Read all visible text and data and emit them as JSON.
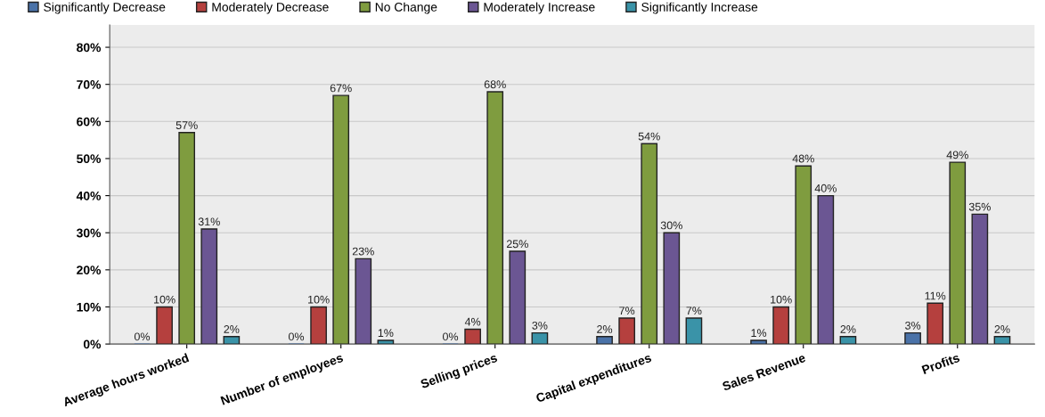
{
  "chart_data": {
    "type": "bar",
    "categories": [
      "Average hours worked",
      "Number of employees",
      "Selling prices",
      "Capital expenditures",
      "Sales Revenue",
      "Profits"
    ],
    "series": [
      {
        "name": "Significantly Decrease",
        "color": "#4a72a8",
        "values": [
          0,
          0,
          0,
          2,
          1,
          3
        ],
        "value_labels": [
          "0%",
          "0%",
          "0%",
          "2%",
          "1%",
          "3%"
        ]
      },
      {
        "name": "Moderately Decrease",
        "color": "#b5403e",
        "values": [
          10,
          10,
          4,
          7,
          10,
          11
        ],
        "value_labels": [
          "10%",
          "10%",
          "4%",
          "7%",
          "10%",
          "11%"
        ]
      },
      {
        "name": "No Change",
        "color": "#7f9c3f",
        "values": [
          57,
          67,
          68,
          54,
          48,
          49
        ],
        "value_labels": [
          "57%",
          "67%",
          "68%",
          "54%",
          "48%",
          "49%"
        ]
      },
      {
        "name": "Moderately Increase",
        "color": "#6b5693",
        "values": [
          31,
          23,
          25,
          30,
          40,
          35
        ],
        "value_labels": [
          "31%",
          "23%",
          "25%",
          "30%",
          "40%",
          "35%"
        ]
      },
      {
        "name": "Significantly Increase",
        "color": "#3a93a8",
        "values": [
          2,
          1,
          3,
          7,
          2,
          2
        ],
        "value_labels": [
          "2%",
          "1%",
          "3%",
          "7%",
          "2%",
          "2%"
        ]
      }
    ],
    "ylim": [
      0,
      86
    ],
    "yticks": [
      {
        "value": 0,
        "label": "0%"
      },
      {
        "value": 10,
        "label": "10%"
      },
      {
        "value": 20,
        "label": "20%"
      },
      {
        "value": 30,
        "label": "30%"
      },
      {
        "value": 40,
        "label": "40%"
      },
      {
        "value": 50,
        "label": "50%"
      },
      {
        "value": 60,
        "label": "60%"
      },
      {
        "value": 70,
        "label": "70%"
      },
      {
        "value": 80,
        "label": "80%"
      }
    ],
    "grid": "y",
    "legend": "top left"
  }
}
